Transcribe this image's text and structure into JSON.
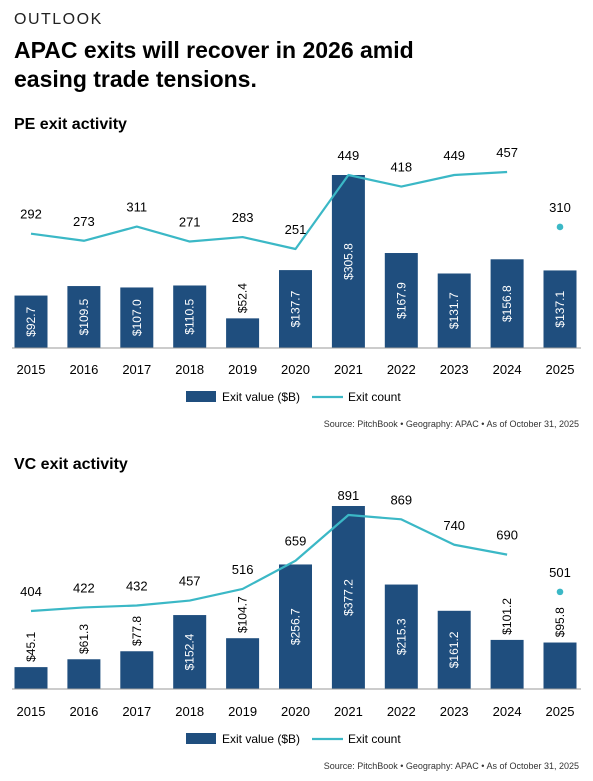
{
  "header": {
    "eyebrow": "OUTLOOK",
    "title": "APAC exits will recover in 2026 amid easing trade tensions."
  },
  "colors": {
    "bar": "#1f4e7e",
    "line": "#3bb8c6",
    "bar_label": "#ffffff",
    "text": "#000000"
  },
  "legend": {
    "bar_label": "Exit value ($B)",
    "line_label": "Exit count"
  },
  "source": "Source: PitchBook  •  Geography: APAC  •  As of October 31, 2025",
  "chart_data": [
    {
      "type": "bar+line",
      "title": "PE exit activity",
      "categories": [
        "2015",
        "2016",
        "2017",
        "2018",
        "2019",
        "2020",
        "2021",
        "2022",
        "2023",
        "2024",
        "2025"
      ],
      "series": [
        {
          "name": "Exit value ($B)",
          "type": "bar",
          "values": [
            92.7,
            109.5,
            107.0,
            110.5,
            52.4,
            137.7,
            305.8,
            167.9,
            131.7,
            156.8,
            137.1
          ],
          "labels": [
            "$92.7",
            "$109.5",
            "$107.0",
            "$110.5",
            "$52.4",
            "$137.7",
            "$305.8",
            "$167.9",
            "$131.7",
            "$156.8",
            "$137.1"
          ]
        },
        {
          "name": "Exit count",
          "type": "line",
          "values": [
            292,
            273,
            311,
            271,
            283,
            251,
            449,
            418,
            449,
            457,
            310
          ],
          "labels": [
            "292",
            "273",
            "311",
            "271",
            "283",
            "251",
            "449",
            "418",
            "449",
            "457",
            "310"
          ],
          "last_point_separate": true
        }
      ],
      "legend": "bottom-center",
      "grid": false
    },
    {
      "type": "bar+line",
      "title": "VC exit activity",
      "categories": [
        "2015",
        "2016",
        "2017",
        "2018",
        "2019",
        "2020",
        "2021",
        "2022",
        "2023",
        "2024",
        "2025"
      ],
      "series": [
        {
          "name": "Exit value ($B)",
          "type": "bar",
          "values": [
            45.1,
            61.3,
            77.8,
            152.4,
            104.7,
            256.7,
            377.2,
            215.3,
            161.2,
            101.2,
            95.8
          ],
          "labels": [
            "$45.1",
            "$61.3",
            "$77.8",
            "$152.4",
            "$104.7",
            "$256.7",
            "$377.2",
            "$215.3",
            "$161.2",
            "$101.2",
            "$95.8"
          ]
        },
        {
          "name": "Exit count",
          "type": "line",
          "values": [
            404,
            422,
            432,
            457,
            516,
            659,
            891,
            869,
            740,
            690,
            501
          ],
          "labels": [
            "404",
            "422",
            "432",
            "457",
            "516",
            "659",
            "891",
            "869",
            "740",
            "690",
            "501"
          ],
          "last_point_separate": true
        }
      ],
      "legend": "bottom-center",
      "grid": false
    }
  ]
}
